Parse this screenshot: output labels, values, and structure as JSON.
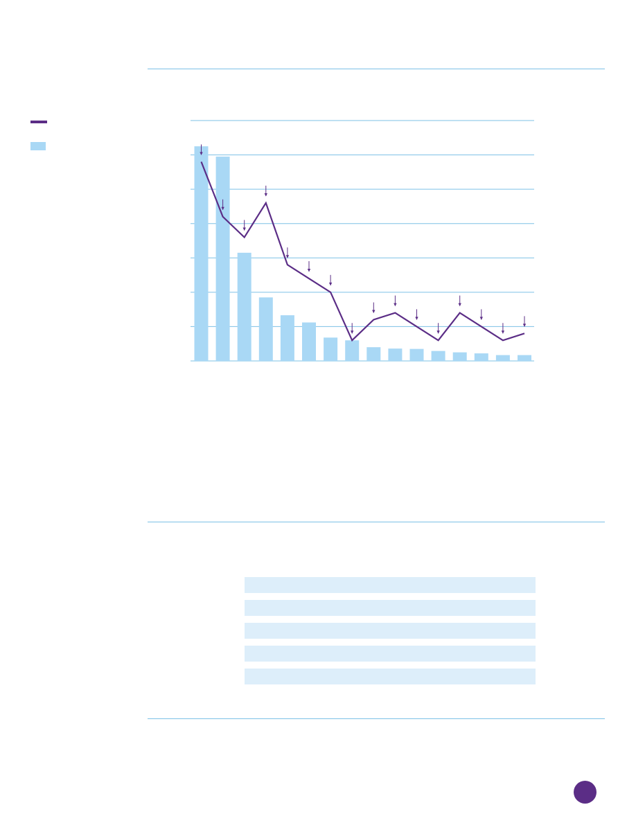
{
  "colors": {
    "rule": "#7cc0e6",
    "gridline": "#7cc0e6",
    "bar": "#a9d8f5",
    "line": "#5b2d86",
    "table_row": "#ddeefa",
    "badge": "#5b2d86"
  },
  "legend": {
    "line_icon": "line-swatch",
    "bar_icon": "bar-swatch"
  },
  "chart_data": {
    "type": "bar",
    "grid": true,
    "ylim": [
      0,
      7
    ],
    "categories": [
      "",
      "",
      "",
      "",
      "",
      "",
      "",
      "",
      "",
      "",
      "",
      "",
      "",
      "",
      "",
      ""
    ],
    "series": [
      {
        "type": "bar",
        "values": [
          6.25,
          5.95,
          3.15,
          1.85,
          1.33,
          1.12,
          0.68,
          0.6,
          0.4,
          0.36,
          0.35,
          0.29,
          0.25,
          0.22,
          0.17,
          0.17
        ]
      },
      {
        "type": "line",
        "markers": "down-arrow",
        "values": [
          5.8,
          4.2,
          3.6,
          4.6,
          2.8,
          2.4,
          2.0,
          0.6,
          1.2,
          1.4,
          1.0,
          0.6,
          1.4,
          1.0,
          0.6,
          0.8
        ]
      }
    ]
  },
  "table": {
    "row_count": 5
  }
}
